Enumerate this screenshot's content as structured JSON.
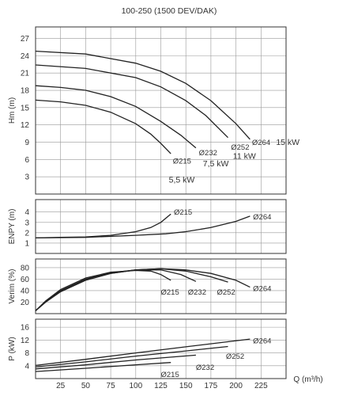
{
  "chart_data": {
    "type": "line",
    "title": "100-250 (1500 DEV/DAK)",
    "xlabel": "Q (m³/h)",
    "x_ticks": [
      25,
      50,
      75,
      100,
      125,
      150,
      175,
      200,
      225
    ],
    "xlim": [
      0,
      250
    ],
    "impeller_labels": [
      "Ø215",
      "Ø232",
      "Ø252",
      "Ø264"
    ],
    "colors": {
      "curve": "#222222",
      "grid": "#999999",
      "power_note": "#cc2222"
    },
    "panels": [
      {
        "id": "head",
        "ylabel": "Hm (m)",
        "y_ticks": [
          3,
          6,
          9,
          12,
          15,
          18,
          21,
          24,
          27
        ],
        "ylim": [
          0,
          29
        ],
        "series": [
          {
            "name": "Ø215",
            "x": [
              0,
              25,
              50,
              75,
              100,
              115,
              125,
              135
            ],
            "y": [
              16.3,
              16.0,
              15.4,
              14.2,
              12.2,
              10.4,
              8.8,
              7.0
            ]
          },
          {
            "name": "Ø232",
            "x": [
              0,
              25,
              50,
              75,
              100,
              125,
              145,
              160
            ],
            "y": [
              18.8,
              18.5,
              18.0,
              16.9,
              15.2,
              12.6,
              10.2,
              8.0
            ]
          },
          {
            "name": "Ø252",
            "x": [
              0,
              50,
              100,
              125,
              150,
              170,
              192
            ],
            "y": [
              22.4,
              21.8,
              20.2,
              18.6,
              16.2,
              13.6,
              9.8
            ]
          },
          {
            "name": "Ø264",
            "x": [
              0,
              50,
              100,
              125,
              150,
              175,
              200,
              214
            ],
            "y": [
              24.8,
              24.3,
              22.7,
              21.3,
              19.2,
              16.2,
              12.2,
              9.5
            ]
          }
        ],
        "labels": [
          {
            "text": "Ø215",
            "x": 137,
            "y": 5.8
          },
          {
            "text": "Ø232",
            "x": 163,
            "y": 7.2
          },
          {
            "text": "Ø252",
            "x": 195,
            "y": 8.2
          },
          {
            "text": "Ø264",
            "x": 216,
            "y": 9.0
          }
        ],
        "power_notes": [
          {
            "text": "5,5 kW",
            "x": 133,
            "y": 2.5
          },
          {
            "text": "7,5 kW",
            "x": 167,
            "y": 5.3
          },
          {
            "text": "11 kW",
            "x": 197,
            "y": 6.6
          },
          {
            "text": "15 kW",
            "x": 240,
            "y": 9.0
          }
        ]
      },
      {
        "id": "npsh",
        "ylabel": "ENPY (m)",
        "y_ticks": [
          1,
          2,
          3,
          4
        ],
        "ylim": [
          0,
          5.2
        ],
        "series": [
          {
            "name": "Ø215",
            "x": [
              0,
              25,
              50,
              75,
              100,
              115,
              125,
              135
            ],
            "y": [
              1.5,
              1.55,
              1.6,
              1.75,
              2.1,
              2.5,
              3.0,
              3.8
            ]
          },
          {
            "name": "Ø264",
            "x": [
              0,
              50,
              100,
              130,
              150,
              175,
              200,
              214
            ],
            "y": [
              1.5,
              1.55,
              1.75,
              1.9,
              2.1,
              2.5,
              3.1,
              3.6
            ]
          }
        ],
        "labels": [
          {
            "text": "Ø215",
            "x": 138,
            "y": 4.0
          },
          {
            "text": "Ø264",
            "x": 217,
            "y": 3.55
          }
        ]
      },
      {
        "id": "efficiency",
        "ylabel": "Verim (%)",
        "y_ticks": [
          20,
          40,
          60,
          80
        ],
        "ylim": [
          0,
          95
        ],
        "series": [
          {
            "name": "Ø215",
            "x": [
              0,
              10,
              25,
              50,
              75,
              100,
              115,
              125,
              135
            ],
            "y": [
              5,
              22,
              42,
              62,
              72,
              75,
              74,
              68,
              58
            ]
          },
          {
            "name": "Ø232",
            "x": [
              0,
              10,
              25,
              50,
              75,
              100,
              125,
              145,
              160
            ],
            "y": [
              5,
              21,
              40,
              60,
              71,
              76,
              76,
              68,
              56
            ]
          },
          {
            "name": "Ø252",
            "x": [
              0,
              10,
              25,
              50,
              75,
              100,
              125,
              150,
              175,
              192
            ],
            "y": [
              5,
              20,
              39,
              59,
              70,
              76,
              78,
              74,
              64,
              55
            ]
          },
          {
            "name": "Ø264",
            "x": [
              0,
              10,
              25,
              50,
              75,
              100,
              125,
              150,
              175,
              200,
              214
            ],
            "y": [
              5,
              20,
              38,
              58,
              70,
              76,
              78,
              76,
              70,
              58,
              46
            ]
          }
        ],
        "labels": [
          {
            "text": "Ø215",
            "x": 125,
            "y": 38
          },
          {
            "text": "Ø232",
            "x": 152,
            "y": 38
          },
          {
            "text": "Ø252",
            "x": 181,
            "y": 38
          },
          {
            "text": "Ø264",
            "x": 217,
            "y": 44
          }
        ]
      },
      {
        "id": "power",
        "ylabel": "P (kW)",
        "y_ticks": [
          4,
          8,
          12,
          16
        ],
        "ylim": [
          0,
          18.5
        ],
        "series": [
          {
            "name": "Ø215",
            "x": [
              0,
              50,
              100,
              135
            ],
            "y": [
              2.2,
              3.2,
              4.3,
              5.0
            ]
          },
          {
            "name": "Ø232",
            "x": [
              0,
              50,
              100,
              160
            ],
            "y": [
              3.0,
              4.3,
              5.8,
              7.3
            ]
          },
          {
            "name": "Ø252",
            "x": [
              0,
              50,
              100,
              150,
              192
            ],
            "y": [
              3.6,
              5.2,
              7.0,
              8.6,
              10.0
            ]
          },
          {
            "name": "Ø264",
            "x": [
              0,
              50,
              100,
              150,
              214
            ],
            "y": [
              4.1,
              6.0,
              8.0,
              9.9,
              12.3
            ]
          }
        ],
        "labels": [
          {
            "text": "Ø215",
            "x": 125,
            "y": 1.3
          },
          {
            "text": "Ø232",
            "x": 160,
            "y": 3.6
          },
          {
            "text": "Ø252",
            "x": 190,
            "y": 7.0
          },
          {
            "text": "Ø264",
            "x": 217,
            "y": 11.9
          }
        ]
      }
    ]
  }
}
